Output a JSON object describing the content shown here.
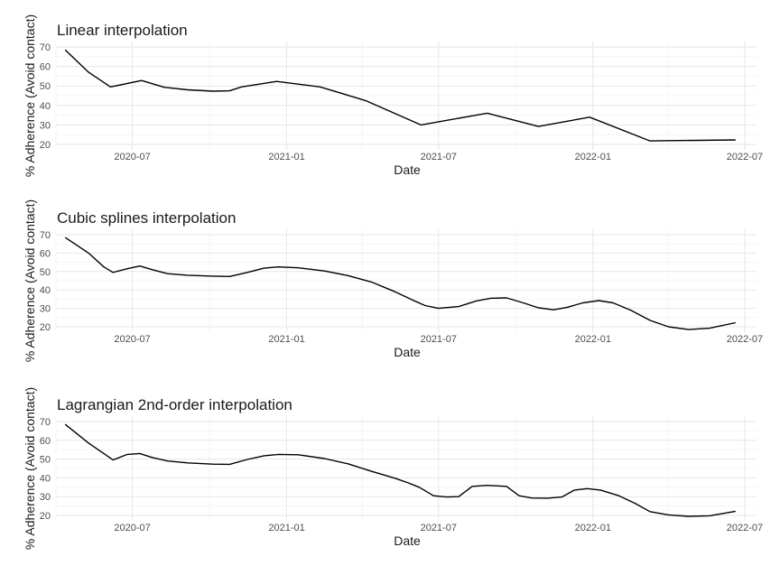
{
  "chart_data": [
    {
      "type": "line",
      "title": "Linear interpolation",
      "xlabel": "Date",
      "ylabel": "% Adherence (Avoid contact)",
      "x_tick_labels": [
        "2020-07",
        "2021-01",
        "2021-07",
        "2022-01",
        "2022-07"
      ],
      "y_tick_labels": [
        "20",
        "30",
        "40",
        "50",
        "60",
        "70"
      ],
      "ylim": [
        20,
        70
      ],
      "xlim": [
        "2020-04-01",
        "2022-07-15"
      ],
      "grid": true,
      "series": [
        {
          "x": [
            "2020-04-12",
            "2020-05-10",
            "2020-06-05",
            "2020-07-12",
            "2020-08-08",
            "2020-09-05",
            "2020-10-05",
            "2020-10-25",
            "2020-11-08",
            "2020-12-20",
            "2021-02-10",
            "2021-04-05",
            "2021-06-10",
            "2021-08-28",
            "2021-10-28",
            "2021-12-28",
            "2022-03-10",
            "2022-06-20"
          ],
          "y": [
            68.5,
            57,
            49.5,
            52.8,
            49.3,
            48,
            47.3,
            47.5,
            49.5,
            52.3,
            49.5,
            42.5,
            30,
            36,
            29.2,
            34,
            21.8,
            22.3
          ]
        }
      ]
    },
    {
      "type": "line",
      "title": "Cubic splines interpolation",
      "xlabel": "Date",
      "ylabel": "% Adherence (Avoid contact)",
      "x_tick_labels": [
        "2020-07",
        "2021-01",
        "2021-07",
        "2022-01",
        "2022-07"
      ],
      "y_tick_labels": [
        "20",
        "30",
        "40",
        "50",
        "60",
        "70"
      ],
      "ylim": [
        20,
        70
      ],
      "xlim": [
        "2020-04-01",
        "2022-07-15"
      ],
      "grid": true,
      "series": [
        {
          "x": [
            "2020-04-12",
            "2020-05-10",
            "2020-05-28",
            "2020-06-08",
            "2020-06-25",
            "2020-07-10",
            "2020-07-25",
            "2020-08-12",
            "2020-09-05",
            "2020-10-05",
            "2020-10-25",
            "2020-11-15",
            "2020-12-05",
            "2020-12-22",
            "2021-01-15",
            "2021-02-15",
            "2021-03-15",
            "2021-04-12",
            "2021-05-10",
            "2021-06-01",
            "2021-06-15",
            "2021-07-01",
            "2021-07-25",
            "2021-08-15",
            "2021-09-01",
            "2021-09-20",
            "2021-10-10",
            "2021-10-28",
            "2021-11-15",
            "2021-12-01",
            "2021-12-20",
            "2022-01-08",
            "2022-01-25",
            "2022-02-15",
            "2022-03-10",
            "2022-04-01",
            "2022-04-25",
            "2022-05-20",
            "2022-06-20"
          ],
          "y": [
            68.5,
            60,
            52.5,
            49.5,
            51.5,
            53,
            51,
            48.8,
            48,
            47.5,
            47.3,
            49.5,
            51.8,
            52.5,
            52,
            50.3,
            47.8,
            44.3,
            39,
            34.3,
            31.5,
            30,
            31,
            34,
            35.5,
            35.7,
            33,
            30.3,
            29.2,
            30.5,
            33,
            34.2,
            33,
            29,
            23.5,
            20,
            18.5,
            19.2,
            22.2
          ]
        }
      ]
    },
    {
      "type": "line",
      "title": "Lagrangian 2nd-order interpolation",
      "xlabel": "Date",
      "ylabel": "% Adherence (Avoid contact)",
      "x_tick_labels": [
        "2020-07",
        "2021-01",
        "2021-07",
        "2022-01",
        "2022-07"
      ],
      "y_tick_labels": [
        "20",
        "30",
        "40",
        "50",
        "60",
        "70"
      ],
      "ylim": [
        20,
        70
      ],
      "xlim": [
        "2020-04-01",
        "2022-07-15"
      ],
      "grid": true,
      "series": [
        {
          "x": [
            "2020-04-12",
            "2020-05-10",
            "2020-05-28",
            "2020-06-08",
            "2020-06-25",
            "2020-07-10",
            "2020-07-25",
            "2020-08-12",
            "2020-09-05",
            "2020-10-05",
            "2020-10-25",
            "2020-11-15",
            "2020-12-05",
            "2020-12-22",
            "2021-01-15",
            "2021-02-15",
            "2021-03-15",
            "2021-04-12",
            "2021-05-10",
            "2021-05-25",
            "2021-06-08",
            "2021-06-25",
            "2021-07-10",
            "2021-07-25",
            "2021-08-10",
            "2021-08-28",
            "2021-09-20",
            "2021-10-05",
            "2021-10-20",
            "2021-11-08",
            "2021-11-25",
            "2021-12-10",
            "2021-12-25",
            "2022-01-10",
            "2022-02-01",
            "2022-02-20",
            "2022-03-10",
            "2022-04-01",
            "2022-04-25",
            "2022-05-20",
            "2022-06-20"
          ],
          "y": [
            68.5,
            58.5,
            53,
            49.5,
            52.5,
            53,
            50.8,
            49,
            48,
            47.3,
            47.2,
            49.8,
            51.8,
            52.5,
            52.3,
            50.3,
            47.5,
            43.5,
            39.8,
            37.5,
            35,
            30.5,
            29.8,
            30,
            35.5,
            36,
            35.5,
            30.5,
            29.3,
            29.2,
            29.8,
            33.5,
            34.3,
            33.5,
            30.5,
            26.5,
            22,
            20.3,
            19.5,
            19.8,
            22.2
          ]
        }
      ]
    }
  ]
}
